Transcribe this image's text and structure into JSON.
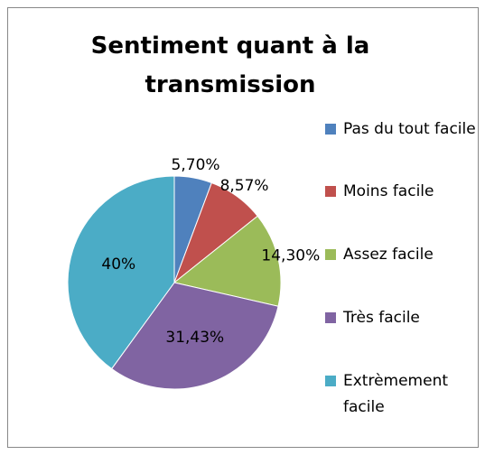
{
  "chart_data": {
    "type": "pie",
    "title": "Sentiment quant à la transmission",
    "categories": [
      "Pas du tout facile",
      "Moins facile",
      "Assez facile",
      "Très facile",
      "Extrèmement facile"
    ],
    "values": [
      5.7,
      8.57,
      14.3,
      31.43,
      40
    ],
    "value_labels": [
      "5,70%",
      "8,57%",
      "14,30%",
      "31,43%",
      "40%"
    ],
    "colors": [
      "#4f81bd",
      "#c0504d",
      "#9bbb59",
      "#8064a2",
      "#4bacc6"
    ],
    "legend": "right"
  }
}
